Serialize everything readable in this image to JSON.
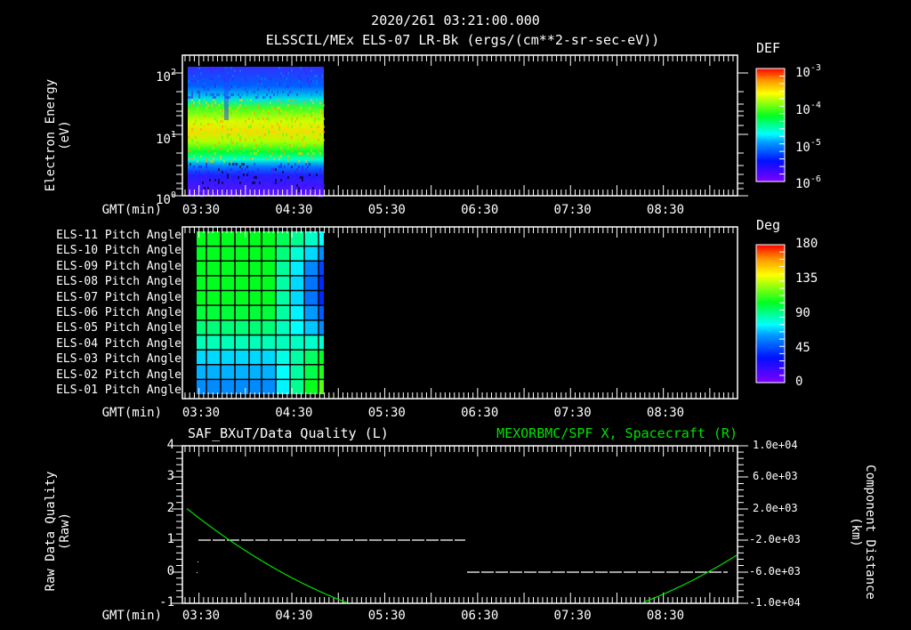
{
  "header": {
    "timestamp": "2020/261 03:21:00.000",
    "subtitle": "ELSSCIL/MEx ELS-07 LR-Bk  (ergs/(cm**2-sr-sec-eV))"
  },
  "time_axis": {
    "label": "GMT(min)",
    "ticks": [
      "03:30",
      "04:30",
      "05:30",
      "06:30",
      "07:30",
      "08:30"
    ]
  },
  "panel1": {
    "ylabel_line1": "Electron Energy",
    "ylabel_line2": "(eV)",
    "yticks": [
      {
        "base": "10",
        "exp": "2"
      },
      {
        "base": "10",
        "exp": "1"
      },
      {
        "base": "10",
        "exp": "0"
      }
    ],
    "colorbar": {
      "title": "DEF",
      "ticks": [
        {
          "base": "10",
          "exp": "-3"
        },
        {
          "base": "10",
          "exp": "-4"
        },
        {
          "base": "10",
          "exp": "-5"
        },
        {
          "base": "10",
          "exp": "-6"
        }
      ]
    }
  },
  "panel2": {
    "rows": [
      "ELS-11 Pitch Angle",
      "ELS-10 Pitch Angle",
      "ELS-09 Pitch Angle",
      "ELS-08 Pitch Angle",
      "ELS-07 Pitch Angle",
      "ELS-06 Pitch Angle",
      "ELS-05 Pitch Angle",
      "ELS-04 Pitch Angle",
      "ELS-03 Pitch Angle",
      "ELS-02 Pitch Angle",
      "ELS-01 Pitch Angle"
    ],
    "colorbar": {
      "title": "Deg",
      "ticks": [
        "180",
        "135",
        "90",
        "45",
        "0"
      ]
    }
  },
  "panel3": {
    "title_left": "SAF_BXuT/Data Quality (L)",
    "title_right": "MEXORBMC/SPF X, Spacecraft (R)",
    "ylabel_left_line1": "Raw Data Quality",
    "ylabel_left_line2": "(Raw)",
    "ylabel_right_line1": "Component Distance",
    "ylabel_right_line2": "(km)",
    "yticks_left": [
      "4",
      "3",
      "2",
      "1",
      "0",
      "-1"
    ],
    "yticks_right": [
      "1.0e+04",
      "6.0e+03",
      "2.0e+03",
      "-2.0e+03",
      "-6.0e+03",
      "-1.0e+04"
    ],
    "colors": {
      "right_series": "#00e000",
      "left_series": "#ffffff"
    }
  },
  "chart_data": [
    {
      "type": "heatmap",
      "title": "ELSSCIL/MEx ELS-07 LR-Bk (ergs/(cm**2-sr-sec-eV))",
      "xlabel": "GMT(min)",
      "ylabel": "Electron Energy (eV)",
      "yscale": "log",
      "ylim": [
        1,
        150
      ],
      "x_ticks": [
        "03:30",
        "04:30",
        "05:30",
        "06:30",
        "07:30",
        "08:30"
      ],
      "data_time_range": [
        "03:24",
        "04:47"
      ],
      "colorbar": {
        "label": "DEF",
        "scale": "log",
        "range": [
          1e-06,
          0.001
        ]
      },
      "description": "Peak flux (~3e-4) in 10-30 eV band; low flux (<1e-5) below 5 eV and above 50 eV; data gap ~03:37"
    },
    {
      "type": "heatmap",
      "title": "ELS Pitch Angle",
      "xlabel": "GMT(min)",
      "rows": [
        "ELS-11",
        "ELS-10",
        "ELS-09",
        "ELS-08",
        "ELS-07",
        "ELS-06",
        "ELS-05",
        "ELS-04",
        "ELS-03",
        "ELS-02",
        "ELS-01"
      ],
      "colorbar": {
        "label": "Deg",
        "range": [
          0,
          180
        ],
        "ticks": [
          0,
          45,
          90,
          135,
          180
        ]
      },
      "values_deg_by_row_early_late": [
        [
          95,
          70
        ],
        [
          95,
          55
        ],
        [
          95,
          40
        ],
        [
          95,
          35
        ],
        [
          95,
          35
        ],
        [
          92,
          45
        ],
        [
          85,
          55
        ],
        [
          78,
          75
        ],
        [
          65,
          95
        ],
        [
          60,
          100
        ],
        [
          55,
          110
        ]
      ]
    },
    {
      "type": "line",
      "title_left": "SAF_BXuT/Data Quality (L)",
      "title_right": "MEXORBMC/SPF X, Spacecraft (R)",
      "xlabel": "GMT(min)",
      "ylabel_left": "Raw Data Quality (Raw)",
      "ylabel_right": "Component Distance (km)",
      "ylim_left": [
        -1,
        4
      ],
      "ylim_right": [
        -10000,
        10000
      ],
      "series": [
        {
          "name": "Data Quality",
          "axis": "left",
          "style": "dashed",
          "x": [
            "03:24",
            "05:51",
            "05:51",
            "08:40"
          ],
          "values": [
            1,
            1,
            0,
            0
          ]
        },
        {
          "name": "SPF X",
          "axis": "right",
          "x": [
            "03:18",
            "03:50",
            "04:30",
            "05:10",
            "05:30",
            "07:30",
            "08:00",
            "08:30",
            "09:05"
          ],
          "values": [
            1800,
            -1000,
            -4800,
            -8200,
            -10000,
            -10000,
            -8200,
            -5200,
            1600
          ]
        }
      ]
    }
  ]
}
